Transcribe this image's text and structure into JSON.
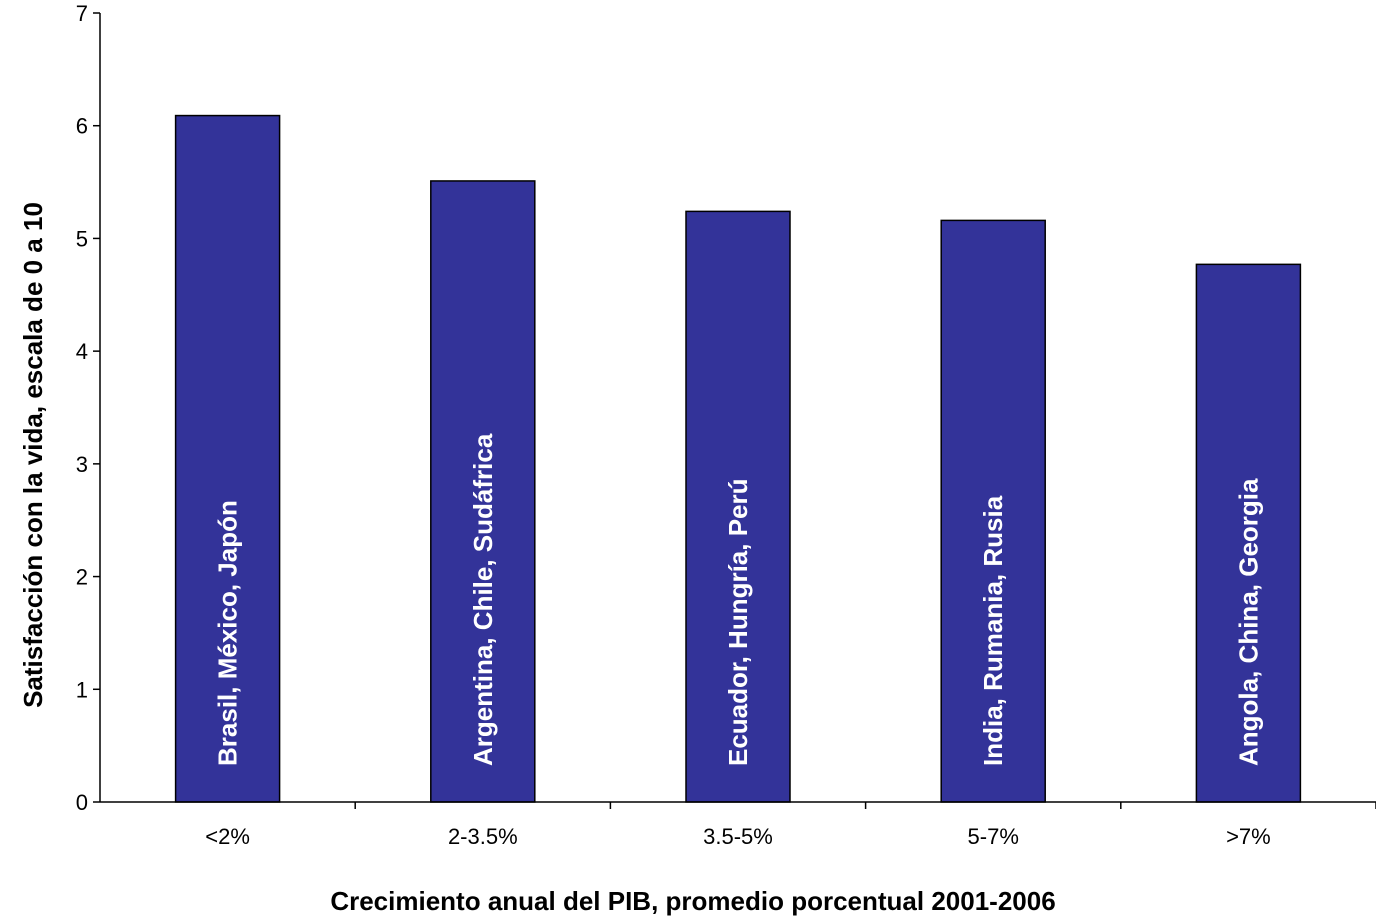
{
  "chart_data": {
    "type": "bar",
    "categories": [
      "<2%",
      "2-3.5%",
      "3.5-5%",
      "5-7%",
      ">7%"
    ],
    "values": [
      6.09,
      5.51,
      5.24,
      5.16,
      4.77
    ],
    "bar_labels": [
      "Brasil, México, Japón",
      "Argentina, Chile, Sudáfrica",
      "Ecuador, Hungría, Perú",
      "India, Rumania, Rusia",
      "Angola, China, Georgia"
    ],
    "xlabel": "Crecimiento anual del PIB, promedio porcentual 2001-2006",
    "ylabel": "Satisfacción con la vida, escala de 0 a 10",
    "ylim": [
      0,
      7
    ],
    "yticks": [
      "0",
      "1",
      "2",
      "3",
      "4",
      "5",
      "6",
      "7"
    ],
    "grid": false,
    "legend": "none",
    "colors": {
      "bar": "#333399",
      "bar_stroke": "#000000"
    }
  }
}
